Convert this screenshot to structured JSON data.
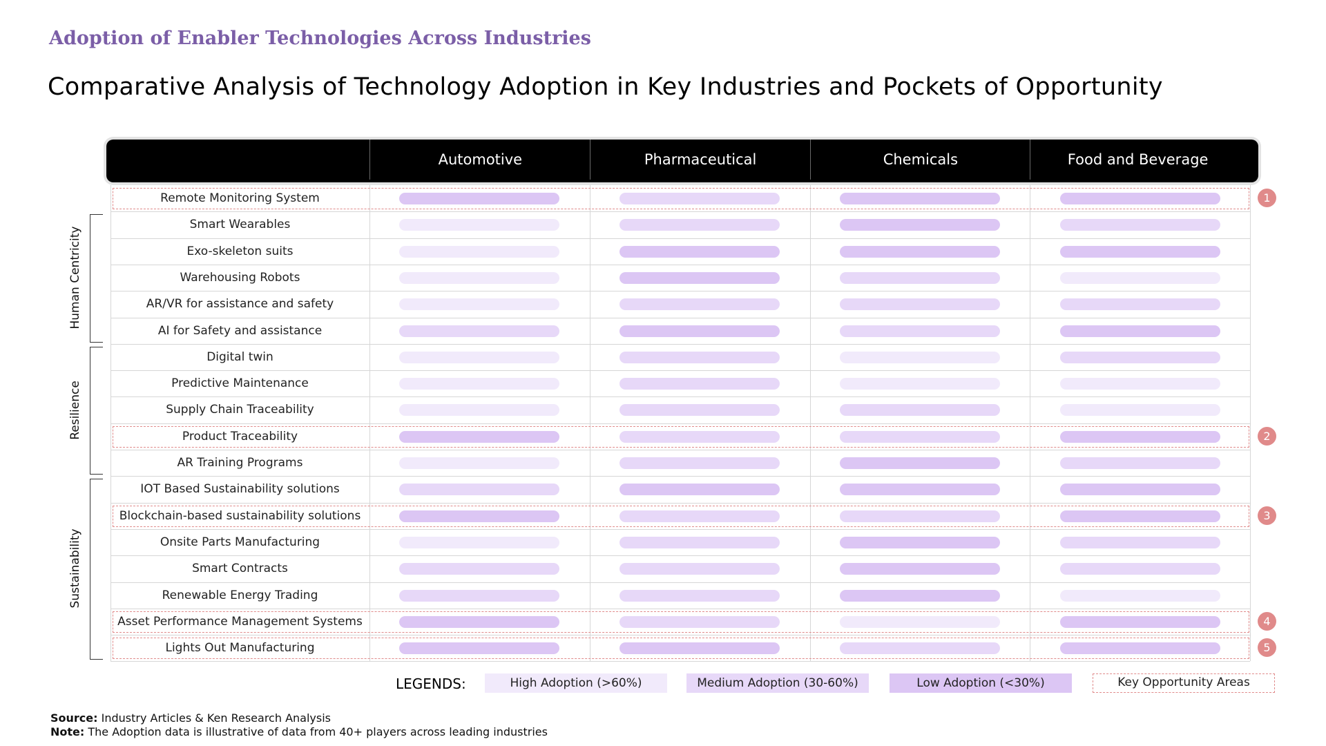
{
  "header": {
    "subtitle": "Adoption of Enabler Technologies Across Industries",
    "title": "Comparative Analysis of Technology Adoption in Key Industries and Pockets of Opportunity"
  },
  "colors": {
    "high": "#f1eafb",
    "medium": "#e7d8f8",
    "low": "#dcc6f4",
    "opportunity": "#e08a8a",
    "subtitle": "#7b5ea7",
    "header_bg": "#000000"
  },
  "chart_data": {
    "type": "table",
    "columns": [
      "Automotive",
      "Pharmaceutical",
      "Chemicals",
      "Food and Beverage"
    ],
    "groups": [
      {
        "name": "Human Centricity",
        "rows": [
          1,
          5
        ]
      },
      {
        "name": "Resilience",
        "rows": [
          6,
          10
        ]
      },
      {
        "name": "Sustainability",
        "rows": [
          11,
          17
        ]
      }
    ],
    "rows": [
      {
        "label": "Remote Monitoring System",
        "levels": [
          "low",
          "medium",
          "low",
          "low"
        ],
        "opportunity": "1"
      },
      {
        "label": "Smart Wearables",
        "levels": [
          "high",
          "medium",
          "low",
          "medium"
        ],
        "opportunity": ""
      },
      {
        "label": "Exo-skeleton suits",
        "levels": [
          "high",
          "low",
          "low",
          "low"
        ],
        "opportunity": ""
      },
      {
        "label": "Warehousing Robots",
        "levels": [
          "high",
          "low",
          "medium",
          "high"
        ],
        "opportunity": ""
      },
      {
        "label": "AR/VR for assistance and safety",
        "levels": [
          "high",
          "medium",
          "medium",
          "medium"
        ],
        "opportunity": ""
      },
      {
        "label": "AI for Safety and assistance",
        "levels": [
          "medium",
          "low",
          "medium",
          "low"
        ],
        "opportunity": ""
      },
      {
        "label": "Digital twin",
        "levels": [
          "high",
          "medium",
          "high",
          "medium"
        ],
        "opportunity": ""
      },
      {
        "label": "Predictive Maintenance",
        "levels": [
          "high",
          "medium",
          "high",
          "high"
        ],
        "opportunity": ""
      },
      {
        "label": "Supply Chain Traceability",
        "levels": [
          "high",
          "medium",
          "medium",
          "high"
        ],
        "opportunity": ""
      },
      {
        "label": "Product Traceability",
        "levels": [
          "low",
          "medium",
          "medium",
          "low"
        ],
        "opportunity": "2"
      },
      {
        "label": "AR Training Programs",
        "levels": [
          "high",
          "medium",
          "low",
          "medium"
        ],
        "opportunity": ""
      },
      {
        "label": "IOT Based Sustainability solutions",
        "levels": [
          "medium",
          "low",
          "low",
          "low"
        ],
        "opportunity": ""
      },
      {
        "label": "Blockchain-based sustainability solutions",
        "levels": [
          "low",
          "medium",
          "medium",
          "low"
        ],
        "opportunity": "3"
      },
      {
        "label": "Onsite Parts Manufacturing",
        "levels": [
          "high",
          "medium",
          "low",
          "medium"
        ],
        "opportunity": ""
      },
      {
        "label": "Smart Contracts",
        "levels": [
          "medium",
          "medium",
          "low",
          "medium"
        ],
        "opportunity": ""
      },
      {
        "label": "Renewable Energy Trading",
        "levels": [
          "medium",
          "medium",
          "low",
          "high"
        ],
        "opportunity": ""
      },
      {
        "label": "Asset Performance Management Systems",
        "levels": [
          "low",
          "medium",
          "high",
          "low"
        ],
        "opportunity": "4"
      },
      {
        "label": "Lights Out Manufacturing",
        "levels": [
          "low",
          "low",
          "medium",
          "low"
        ],
        "opportunity": "5"
      }
    ]
  },
  "legend": {
    "title": "LEGENDS:",
    "high": "High Adoption (>60%)",
    "medium": "Medium Adoption (30-60%)",
    "low": "Low Adoption (<30%)",
    "opportunity": "Key Opportunity Areas"
  },
  "footer": {
    "source_label": "Source:",
    "source_text": " Industry Articles & Ken Research Analysis",
    "note_label": "Note:",
    "note_text": " The Adoption data is illustrative of data from 40+ players across leading industries"
  }
}
